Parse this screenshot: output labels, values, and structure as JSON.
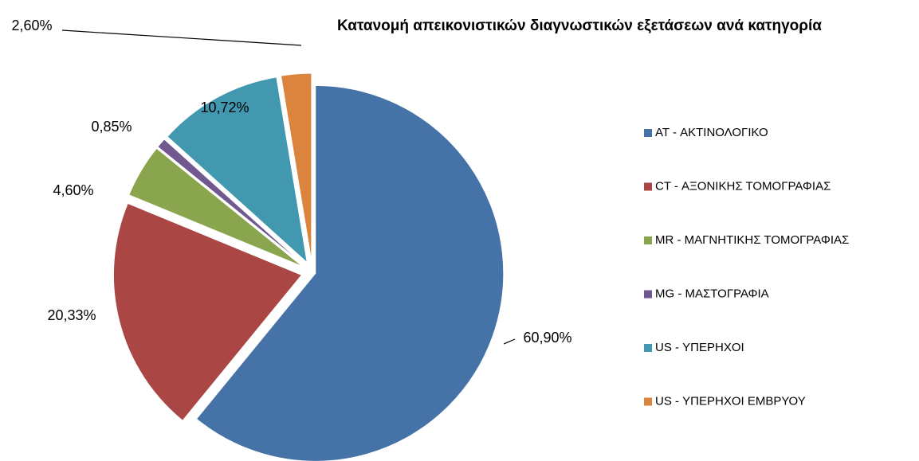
{
  "chart_data": {
    "type": "pie",
    "title": "Κατανομή απεικονιστικών διαγνωστικών εξετάσεων  ανά κατηγορία",
    "categories": [
      "AT - ΑΚΤΙΝΟΛΟΓΙΚΟ",
      "CT - ΑΞΟΝΙΚΗΣ ΤΟΜΟΓΡΑΦΙΑΣ",
      "MR - ΜΑΓΝΗΤΙΚΗΣ ΤΟΜΟΓΡΑΦΙΑΣ",
      "MG - ΜΑΣΤΟΓΡΑΦΙΑ",
      "US - ΥΠΕΡΗΧΟΙ",
      "US - ΥΠΕΡΗΧΟΙ ΕΜΒΡΥΟΥ"
    ],
    "values": [
      60.9,
      20.33,
      4.6,
      0.85,
      10.72,
      2.6
    ],
    "value_labels": [
      "60,90%",
      "20,33%",
      "4,60%",
      "0,85%",
      "10,72%",
      "2,60%"
    ],
    "colors": [
      "#4572a7",
      "#aa4643",
      "#89a54e",
      "#71588f",
      "#4198af",
      "#db843d"
    ],
    "legend": "right"
  }
}
